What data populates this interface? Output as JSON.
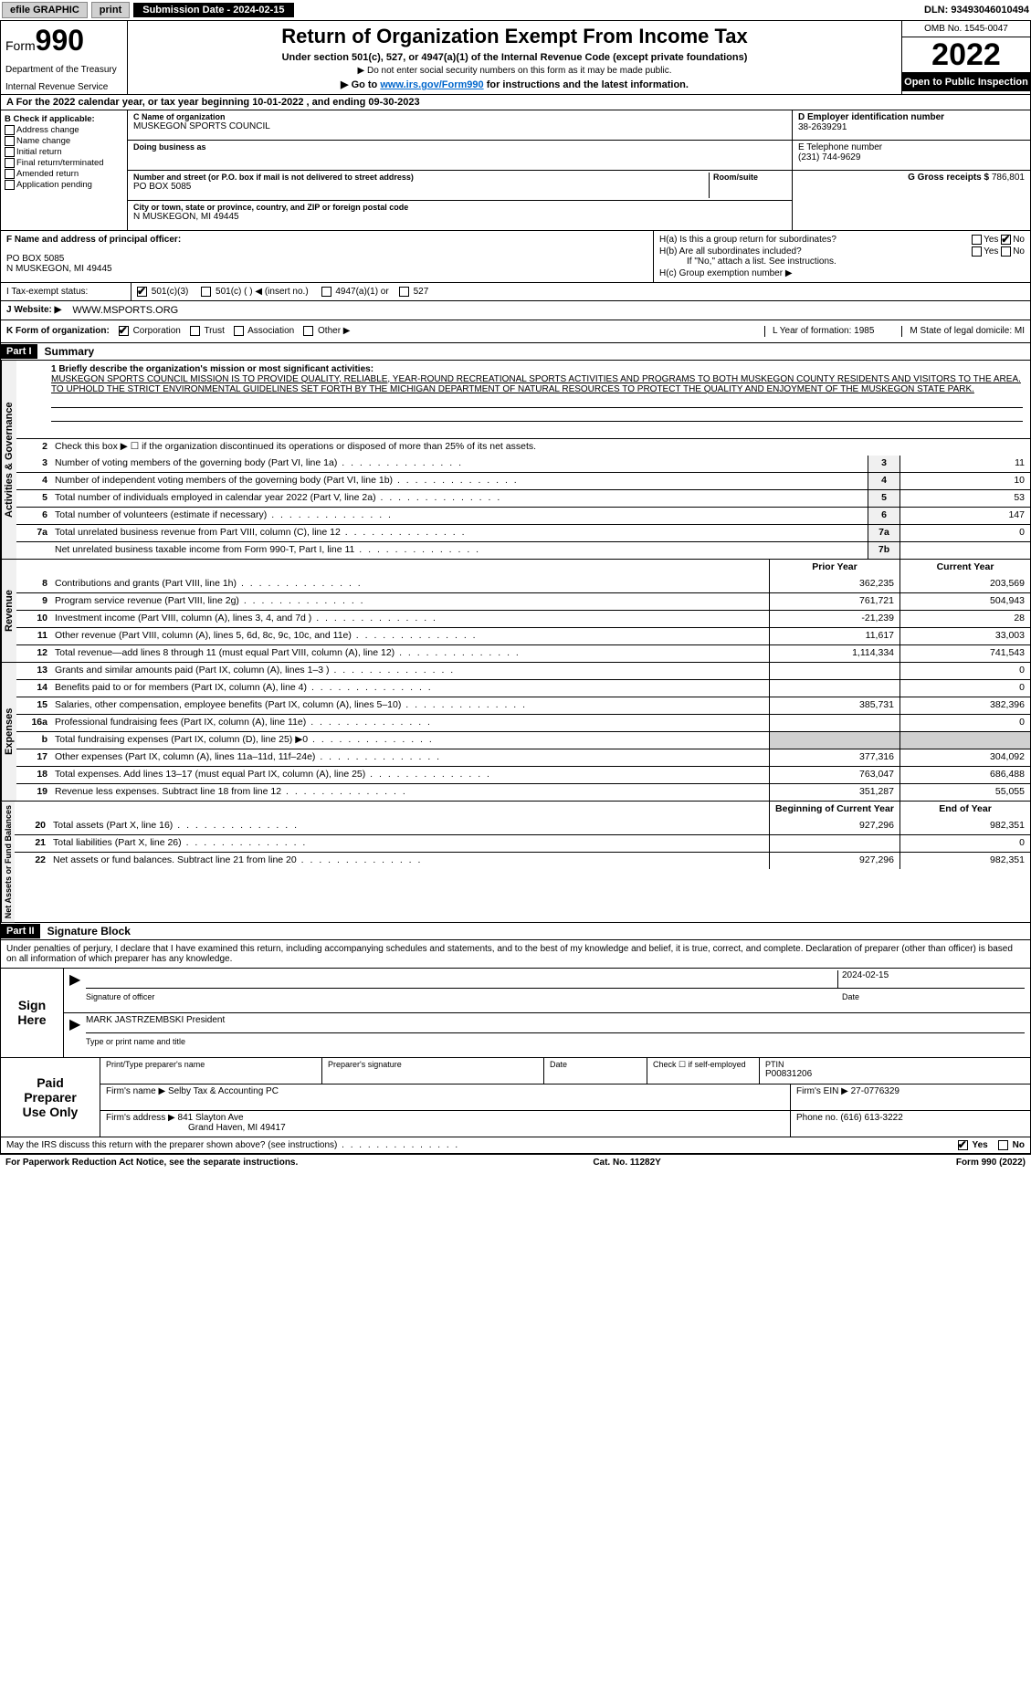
{
  "topbar": {
    "efile": "efile GRAPHIC",
    "print": "print",
    "sub_label": "Submission Date - 2024-02-15",
    "dln": "DLN: 93493046010494"
  },
  "header": {
    "form_prefix": "Form",
    "form_number": "990",
    "title": "Return of Organization Exempt From Income Tax",
    "subtitle1": "Under section 501(c), 527, or 4947(a)(1) of the Internal Revenue Code (except private foundations)",
    "subtitle2": "▶ Do not enter social security numbers on this form as it may be made public.",
    "subtitle3_pre": "▶ Go to ",
    "subtitle3_link": "www.irs.gov/Form990",
    "subtitle3_post": " for instructions and the latest information.",
    "dept": "Department of the Treasury",
    "irs": "Internal Revenue Service",
    "omb": "OMB No. 1545-0047",
    "year": "2022",
    "open": "Open to Public Inspection"
  },
  "row_a": "A For the 2022 calendar year, or tax year beginning 10-01-2022    , and ending 09-30-2023",
  "col_b": {
    "label": "B Check if applicable:",
    "items": [
      "Address change",
      "Name change",
      "Initial return",
      "Final return/terminated",
      "Amended return",
      "Application pending"
    ]
  },
  "col_c": {
    "name_lbl": "C Name of organization",
    "name": "MUSKEGON SPORTS COUNCIL",
    "dba_lbl": "Doing business as",
    "dba": "",
    "addr_lbl": "Number and street (or P.O. box if mail is not delivered to street address)",
    "room_lbl": "Room/suite",
    "addr": "PO BOX 5085",
    "city_lbl": "City or town, state or province, country, and ZIP or foreign postal code",
    "city": "N MUSKEGON, MI  49445"
  },
  "col_d": {
    "ein_lbl": "D Employer identification number",
    "ein": "38-2639291",
    "phone_lbl": "E Telephone number",
    "phone": "(231) 744-9629",
    "gross_lbl": "G Gross receipts $",
    "gross": "786,801"
  },
  "row_f": {
    "lbl": "F Name and address of principal officer:",
    "addr1": "PO BOX 5085",
    "addr2": "N MUSKEGON, MI  49445",
    "ha": "H(a)  Is this a group return for subordinates?",
    "hb": "H(b)  Are all subordinates included?",
    "hb_note": "If \"No,\" attach a list. See instructions.",
    "hc": "H(c)  Group exemption number ▶",
    "yes": "Yes",
    "no": "No"
  },
  "tax_exempt": {
    "i_lbl": "I   Tax-exempt status:",
    "o1": "501(c)(3)",
    "o2": "501(c) (  ) ◀ (insert no.)",
    "o3": "4947(a)(1) or",
    "o4": "527"
  },
  "website": {
    "lbl": "J   Website: ▶",
    "val": "WWW.MSPORTS.ORG"
  },
  "row_k": {
    "lbl": "K Form of organization:",
    "corp": "Corporation",
    "trust": "Trust",
    "assoc": "Association",
    "other": "Other ▶",
    "l": "L Year of formation: 1985",
    "m": "M State of legal domicile: MI"
  },
  "part1": {
    "header": "Part I",
    "title": "Summary"
  },
  "mission": {
    "lbl": "1  Briefly describe the organization's mission or most significant activities:",
    "text": "MUSKEGON SPORTS COUNCIL MISSION IS TO PROVIDE QUALITY, RELIABLE, YEAR-ROUND RECREATIONAL SPORTS ACTIVITIES AND PROGRAMS TO BOTH MUSKEGON COUNTY RESIDENTS AND VISITORS TO THE AREA. TO UPHOLD THE STRICT ENVIRONMENTAL GUIDELINES SET FORTH BY THE MICHIGAN DEPARTMENT OF NATURAL RESOURCES TO PROTECT THE QUALITY AND ENJOYMENT OF THE MUSKEGON STATE PARK."
  },
  "governance": {
    "vlabel": "Activities & Governance",
    "line2": "Check this box ▶ ☐ if the organization discontinued its operations or disposed of more than 25% of its net assets.",
    "rows": [
      {
        "n": "3",
        "d": "Number of voting members of the governing body (Part VI, line 1a)",
        "b": "3",
        "v": "11"
      },
      {
        "n": "4",
        "d": "Number of independent voting members of the governing body (Part VI, line 1b)",
        "b": "4",
        "v": "10"
      },
      {
        "n": "5",
        "d": "Total number of individuals employed in calendar year 2022 (Part V, line 2a)",
        "b": "5",
        "v": "53"
      },
      {
        "n": "6",
        "d": "Total number of volunteers (estimate if necessary)",
        "b": "6",
        "v": "147"
      },
      {
        "n": "7a",
        "d": "Total unrelated business revenue from Part VIII, column (C), line 12",
        "b": "7a",
        "v": "0"
      },
      {
        "n": "",
        "d": "Net unrelated business taxable income from Form 990-T, Part I, line 11",
        "b": "7b",
        "v": ""
      }
    ]
  },
  "revenue": {
    "vlabel": "Revenue",
    "hdr_prior": "Prior Year",
    "hdr_current": "Current Year",
    "rows": [
      {
        "n": "8",
        "d": "Contributions and grants (Part VIII, line 1h)",
        "p": "362,235",
        "c": "203,569"
      },
      {
        "n": "9",
        "d": "Program service revenue (Part VIII, line 2g)",
        "p": "761,721",
        "c": "504,943"
      },
      {
        "n": "10",
        "d": "Investment income (Part VIII, column (A), lines 3, 4, and 7d )",
        "p": "-21,239",
        "c": "28"
      },
      {
        "n": "11",
        "d": "Other revenue (Part VIII, column (A), lines 5, 6d, 8c, 9c, 10c, and 11e)",
        "p": "11,617",
        "c": "33,003"
      },
      {
        "n": "12",
        "d": "Total revenue—add lines 8 through 11 (must equal Part VIII, column (A), line 12)",
        "p": "1,114,334",
        "c": "741,543"
      }
    ]
  },
  "expenses": {
    "vlabel": "Expenses",
    "rows": [
      {
        "n": "13",
        "d": "Grants and similar amounts paid (Part IX, column (A), lines 1–3 )",
        "p": "",
        "c": "0"
      },
      {
        "n": "14",
        "d": "Benefits paid to or for members (Part IX, column (A), line 4)",
        "p": "",
        "c": "0"
      },
      {
        "n": "15",
        "d": "Salaries, other compensation, employee benefits (Part IX, column (A), lines 5–10)",
        "p": "385,731",
        "c": "382,396"
      },
      {
        "n": "16a",
        "d": "Professional fundraising fees (Part IX, column (A), line 11e)",
        "p": "",
        "c": "0"
      },
      {
        "n": "b",
        "d": "Total fundraising expenses (Part IX, column (D), line 25) ▶0",
        "p": "gray",
        "c": "gray"
      },
      {
        "n": "17",
        "d": "Other expenses (Part IX, column (A), lines 11a–11d, 11f–24e)",
        "p": "377,316",
        "c": "304,092"
      },
      {
        "n": "18",
        "d": "Total expenses. Add lines 13–17 (must equal Part IX, column (A), line 25)",
        "p": "763,047",
        "c": "686,488"
      },
      {
        "n": "19",
        "d": "Revenue less expenses. Subtract line 18 from line 12",
        "p": "351,287",
        "c": "55,055"
      }
    ]
  },
  "netassets": {
    "vlabel": "Net Assets or Fund Balances",
    "hdr_prior": "Beginning of Current Year",
    "hdr_current": "End of Year",
    "rows": [
      {
        "n": "20",
        "d": "Total assets (Part X, line 16)",
        "p": "927,296",
        "c": "982,351"
      },
      {
        "n": "21",
        "d": "Total liabilities (Part X, line 26)",
        "p": "",
        "c": "0"
      },
      {
        "n": "22",
        "d": "Net assets or fund balances. Subtract line 21 from line 20",
        "p": "927,296",
        "c": "982,351"
      }
    ]
  },
  "part2": {
    "header": "Part II",
    "title": "Signature Block",
    "declaration": "Under penalties of perjury, I declare that I have examined this return, including accompanying schedules and statements, and to the best of my knowledge and belief, it is true, correct, and complete. Declaration of preparer (other than officer) is based on all information of which preparer has any knowledge."
  },
  "sign": {
    "lbl1": "Sign",
    "lbl2": "Here",
    "sig_lbl": "Signature of officer",
    "date_lbl": "Date",
    "date": "2024-02-15",
    "name": "MARK JASTRZEMBSKI President",
    "name_lbl": "Type or print name and title"
  },
  "paid": {
    "lbl1": "Paid",
    "lbl2": "Preparer",
    "lbl3": "Use Only",
    "h1": "Print/Type preparer's name",
    "h2": "Preparer's signature",
    "h3": "Date",
    "h4": "Check ☐ if self-employed",
    "h5": "PTIN",
    "ptin": "P00831206",
    "firm_name_lbl": "Firm's name    ▶",
    "firm_name": "Selby Tax & Accounting PC",
    "firm_ein_lbl": "Firm's EIN ▶",
    "firm_ein": "27-0776329",
    "firm_addr_lbl": "Firm's address ▶",
    "firm_addr1": "841 Slayton Ave",
    "firm_addr2": "Grand Haven, MI  49417",
    "phone_lbl": "Phone no.",
    "phone": "(616) 613-3222"
  },
  "discuss": {
    "text": "May the IRS discuss this return with the preparer shown above? (see instructions)",
    "yes": "Yes",
    "no": "No"
  },
  "footer": {
    "left": "For Paperwork Reduction Act Notice, see the separate instructions.",
    "mid": "Cat. No. 11282Y",
    "right_pre": "Form ",
    "right_form": "990",
    "right_post": " (2022)"
  }
}
